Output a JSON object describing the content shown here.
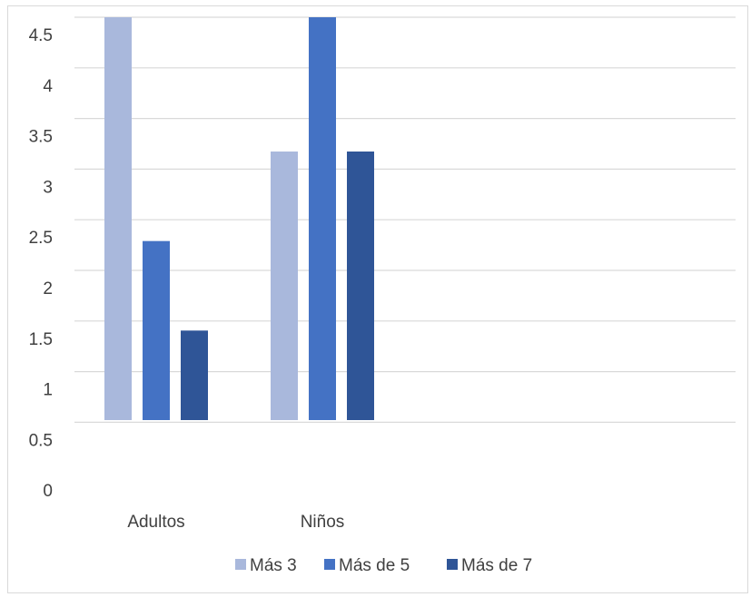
{
  "chart_data": {
    "type": "bar",
    "categories": [
      "Adultos",
      "Niños"
    ],
    "series": [
      {
        "name": "Más 3",
        "values": [
          4.5,
          3.0
        ],
        "color": "#a9b8dc"
      },
      {
        "name": "Más de 5",
        "values": [
          2.0,
          4.5
        ],
        "color": "#4472c4"
      },
      {
        "name": "Más de 7",
        "values": [
          1.0,
          3.0
        ],
        "color": "#2f5597"
      }
    ],
    "y_tick_labels": [
      "0",
      "0.5",
      "1",
      "1.5",
      "2",
      "2.5",
      "3",
      "3.5",
      "4",
      "4.5"
    ],
    "ylim": [
      0,
      4.5
    ],
    "grid": true,
    "legend_position": "bottom",
    "title": "",
    "xlabel": "",
    "ylabel": ""
  }
}
